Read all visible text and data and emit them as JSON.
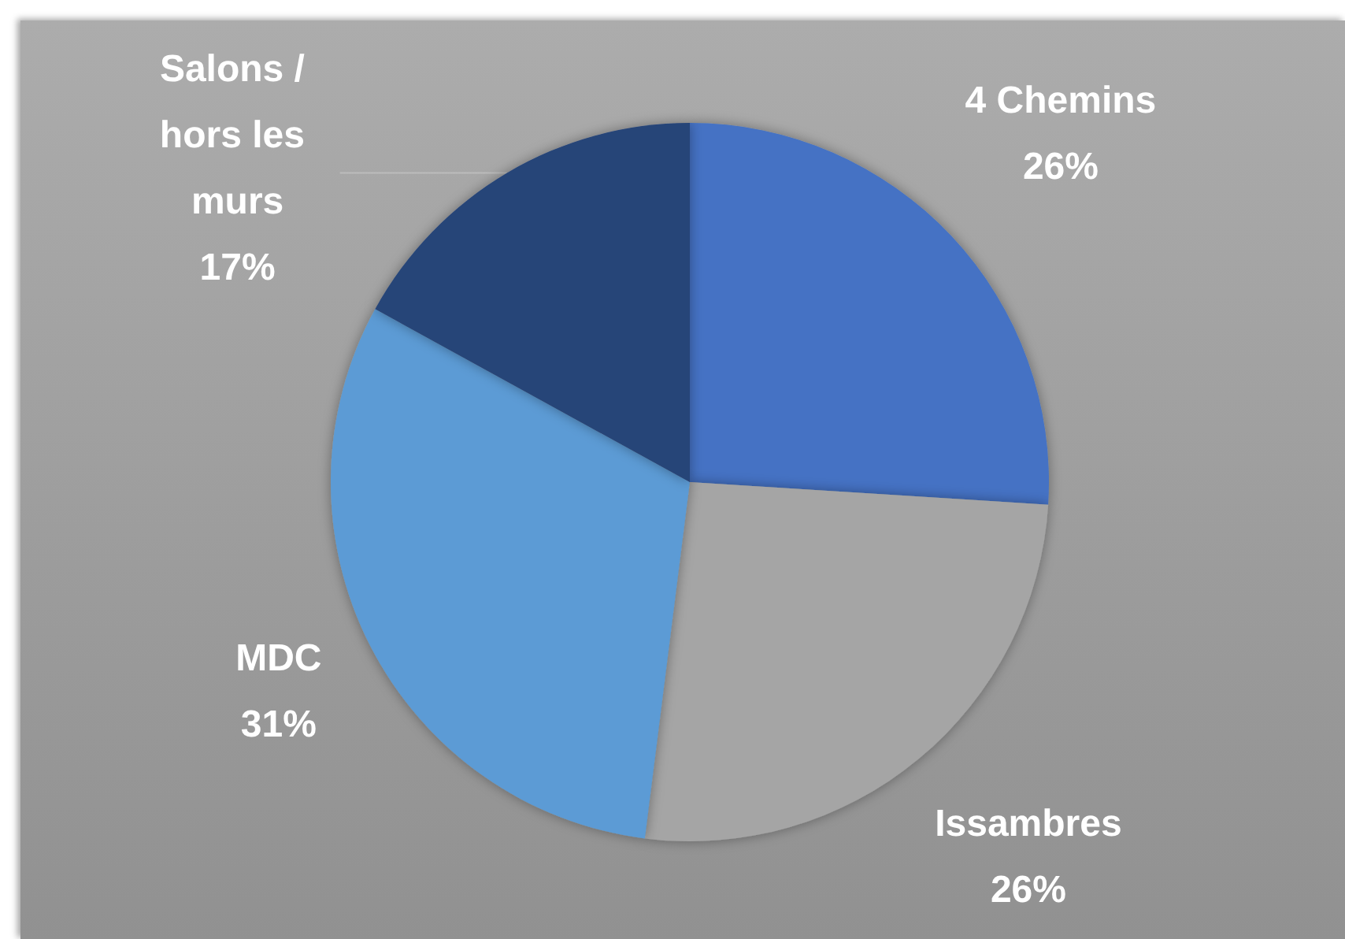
{
  "chart_data": {
    "type": "pie",
    "categories": [
      "4 Chemins",
      "Issambres",
      "MDC",
      "Salons / hors les murs"
    ],
    "values": [
      26,
      26,
      31,
      17
    ],
    "colors": [
      "#4472c4",
      "#a5a5a5",
      "#5b9bd5",
      "#264478"
    ],
    "value_labels": [
      "26%",
      "26%",
      "31%",
      "17%"
    ]
  }
}
